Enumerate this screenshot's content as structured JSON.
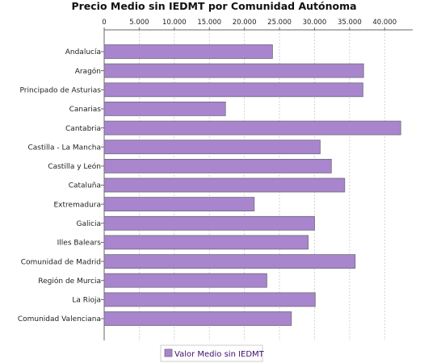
{
  "chart_data": {
    "type": "bar",
    "orientation": "horizontal",
    "title": "Precio Medio sin IEDMT por Comunidad Autónoma",
    "categories": [
      "Andalucía",
      "Aragón",
      "Principado de Asturias",
      "Canarias",
      "Cantabria",
      "Castilla - La Mancha",
      "Castilla y León",
      "Cataluña",
      "Extremadura",
      "Galicia",
      "Illes Balears",
      "Comunidad de Madrid",
      "Región de Murcia",
      "La Rioja",
      "Comunidad Valenciana"
    ],
    "series": [
      {
        "name": "Valor Medio sin IEDMT",
        "values": [
          24000,
          37000,
          36900,
          17300,
          42300,
          30800,
          32400,
          34300,
          21400,
          30000,
          29100,
          35800,
          23200,
          30100,
          26700
        ]
      }
    ],
    "xlim": [
      0,
      44000
    ],
    "x_ticks": [
      0,
      5000,
      10000,
      15000,
      20000,
      25000,
      30000,
      35000,
      40000
    ],
    "x_tick_labels": [
      "0",
      "5.000",
      "10.000",
      "15.000",
      "20.000",
      "25.000",
      "30.000",
      "35.000",
      "40.000"
    ],
    "x_axis_position": "top",
    "grid": true,
    "legend_position": "bottom",
    "bar_color": "#a885cc",
    "bar_stroke": "#6f6a7a"
  }
}
